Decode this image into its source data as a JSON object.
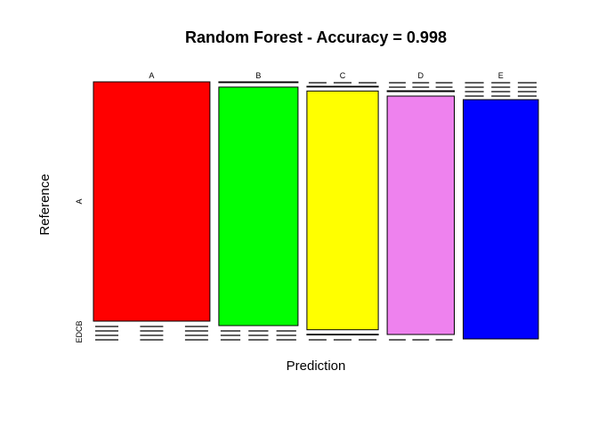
{
  "chart_data": {
    "type": "mosaic",
    "title": "Random Forest - Accuracy =  0.998",
    "xlabel": "Prediction",
    "ylabel": "Reference",
    "x_categories": [
      "A",
      "B",
      "C",
      "D",
      "E"
    ],
    "y_categories": [
      "A",
      "B",
      "C",
      "D",
      "E"
    ],
    "y_tick_labels": [
      "A",
      "EDCB"
    ],
    "colors": [
      "#ff0000",
      "#00ff00",
      "#ffff00",
      "#ee82ee",
      "#0000ff"
    ],
    "grid": false,
    "legend": "none",
    "counts": [
      [
        1395,
        0,
        0,
        0,
        0
      ],
      [
        3,
        946,
        0,
        0,
        0
      ],
      [
        0,
        1,
        853,
        1,
        0
      ],
      [
        0,
        0,
        3,
        801,
        0
      ],
      [
        0,
        0,
        0,
        0,
        901
      ]
    ]
  }
}
